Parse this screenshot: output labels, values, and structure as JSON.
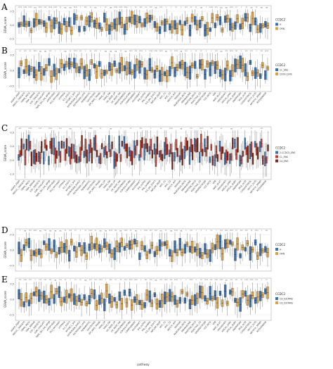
{
  "chart_data": [
    {
      "panel": "A",
      "type": "boxplot",
      "ylabel": "GSVA_score",
      "y_ticks": [
        "0.5",
        "0.0",
        "-0.5"
      ],
      "legend_title": "CCDC2",
      "series": [
        {
          "name": "H",
          "color": "#3a6fb0"
        },
        {
          "name": "ORN",
          "color": "#d9a04a"
        }
      ],
      "n_categories": 50
    },
    {
      "panel": "B",
      "type": "boxplot",
      "ylabel": "GSVA_score",
      "y_ticks": [
        "0.5",
        "0.0",
        "-0.5"
      ],
      "legend_title": "CCDC2",
      "series": [
        {
          "name": "CL_ENS",
          "color": "#3a6fb0"
        },
        {
          "name": "CDOH_ENS",
          "color": "#d9a04a"
        }
      ],
      "n_categories": 50
    },
    {
      "panel": "C",
      "type": "boxplot",
      "ylabel": "GSVA_score",
      "y_ticks": [
        "0.5",
        "0.0",
        "-0.5",
        "-1.0"
      ],
      "legend_title": "CCDC2",
      "series": [
        {
          "name": "2-CCDC5_ENS",
          "color": "#3a6fb0"
        },
        {
          "name": "CL_ENS",
          "color": "#c0392b"
        },
        {
          "name": "CA_ENS",
          "color": "#7b2414"
        }
      ],
      "n_categories": 50
    },
    {
      "panel": "D",
      "type": "boxplot",
      "ylabel": "GSVA_score",
      "y_ticks": [
        "0.5",
        "0.0",
        "-0.5"
      ],
      "legend_title": "CCDC2",
      "series": [
        {
          "name": "H",
          "color": "#3a6fb0"
        },
        {
          "name": "ORN",
          "color": "#d9a04a"
        }
      ],
      "n_categories": 50
    },
    {
      "panel": "E",
      "type": "boxplot",
      "ylabel": "GSVA_score",
      "y_ticks": [
        "0.5",
        "0.0",
        "-0.5"
      ],
      "legend_title": "CCDC2",
      "xlabel": "pathway",
      "series": [
        {
          "name": "CD_ID1MNS",
          "color": "#3a6fb0"
        },
        {
          "name": "CD_ID1MNS",
          "color": "#d9a04a"
        }
      ],
      "n_categories": 50
    }
  ],
  "x_tick_labels": [
    "ADIPO_RESP",
    "MEF2C_TARGETS",
    "HEME_META",
    "DNA_REPAIR",
    "E2F_TARGETS",
    "G2M_CHECKPT",
    "TNFA_SIG_VIA_NFKB",
    "APOPTOSIS",
    "P53_PATHWAY",
    "HYPOXIA",
    "IL2_STAT5",
    "MTORC1_SIG",
    "ESTROGEN_EARLY",
    "ESTROGEN_LATE",
    "XENOBIOTIC",
    "GLYCOLYSIS",
    "EPI_MES_TRANS",
    "KRAS_UP",
    "KRAS_DN",
    "UV_RESP_UP",
    "UV_RESP_DN",
    "ANGIOGENESIS",
    "COAGULATION",
    "COMPLEMENT",
    "ALLOGRAFT",
    "IFN_ALPHA",
    "IFN_GAMMA",
    "IL6_JAK_STAT3",
    "INFLAM_RESP",
    "MYC_V1",
    "MYC_V2",
    "NOTCH_SIG",
    "OXPHOS",
    "PANCREAS_BETA",
    "PEROXISOME",
    "PROTEIN_SECR",
    "REACTIVE_O2",
    "SPERMATOGEN",
    "TGF_BETA",
    "UPR",
    "WNT_BCAT",
    "HEDGEHOG",
    "APICAL_JUNC",
    "APICAL_SURF",
    "ANDROGEN",
    "BILE_ACID",
    "CHOLESTEROL",
    "FATTY_ACID",
    "MITOTIC_SPIND",
    "MYOGENESIS"
  ],
  "sig_marks": [
    "ns",
    "**",
    "****",
    "*",
    "***"
  ]
}
